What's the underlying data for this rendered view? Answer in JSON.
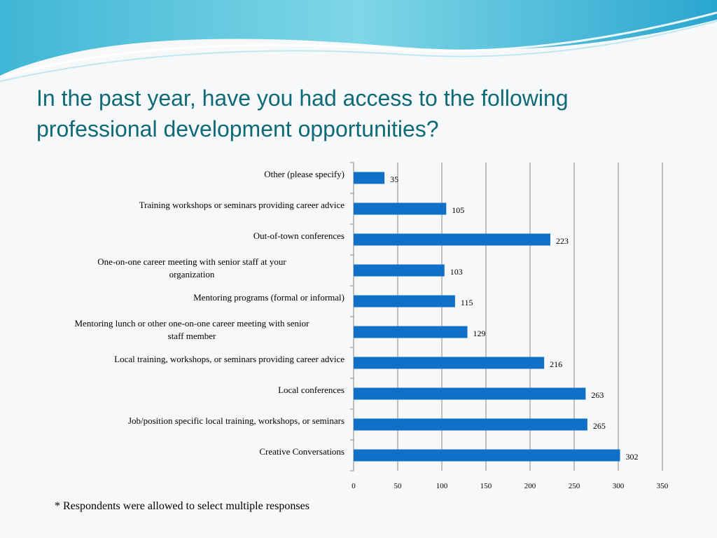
{
  "slide": {
    "title": "In the past year, have you had access to the following professional development opportunities?",
    "footnote": "* Respondents were allowed to select multiple responses"
  },
  "colors": {
    "bar": "#1070c8",
    "title": "#0f6a77",
    "grid": "#888888"
  },
  "chart_data": {
    "type": "bar",
    "orientation": "horizontal",
    "categories": [
      "Other (please specify)",
      "Training workshops or seminars providing career advice",
      "Out-of-town conferences",
      "One-on-one career meeting with senior staff at your organization",
      "Mentoring programs (formal or informal)",
      "Mentoring lunch or other one-on-one career meeting with senior staff member",
      "Local training, workshops, or seminars providing career advice",
      "Local conferences",
      "Job/position specific local training, workshops, or seminars",
      "Creative Conversations"
    ],
    "values": [
      35,
      105,
      223,
      103,
      115,
      129,
      216,
      263,
      265,
      302
    ],
    "xlim": [
      0,
      350
    ],
    "xticks": [
      0,
      50,
      100,
      150,
      200,
      250,
      300,
      350
    ],
    "grid": true,
    "data_labels": true
  }
}
